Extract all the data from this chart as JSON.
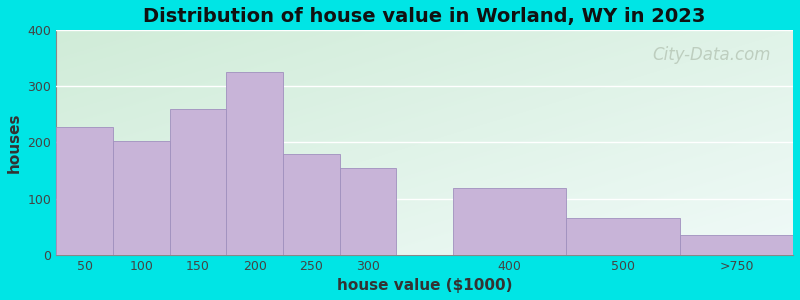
{
  "title": "Distribution of house value in Worland, WY in 2023",
  "xlabel": "house value ($1000)",
  "ylabel": "houses",
  "categories": [
    "50",
    "100",
    "150",
    "200",
    "250",
    "300",
    "400",
    "500",
    ">750"
  ],
  "values": [
    228,
    202,
    260,
    325,
    180,
    155,
    118,
    65,
    35
  ],
  "bar_lefts": [
    0,
    1,
    2,
    3,
    4,
    5,
    7,
    9,
    11
  ],
  "bar_widths": [
    1,
    1,
    1,
    1,
    1,
    1,
    2,
    2,
    2
  ],
  "xtick_positions": [
    0.5,
    1.5,
    2.5,
    3.5,
    4.5,
    5.5,
    8,
    10,
    12
  ],
  "xlim": [
    0,
    13
  ],
  "bar_color": "#c8b4d8",
  "bar_edge_color": "#a090be",
  "ylim": [
    0,
    400
  ],
  "yticks": [
    0,
    100,
    200,
    300,
    400
  ],
  "background_outer": "#00e5e5",
  "plot_bg_top_left": "#d0ecd8",
  "plot_bg_bottom_right": "#f0faf8",
  "title_fontsize": 14,
  "axis_label_fontsize": 11,
  "tick_fontsize": 9,
  "watermark_text": "City-Data.com",
  "watermark_color": "#b8c8b8",
  "watermark_fontsize": 12
}
